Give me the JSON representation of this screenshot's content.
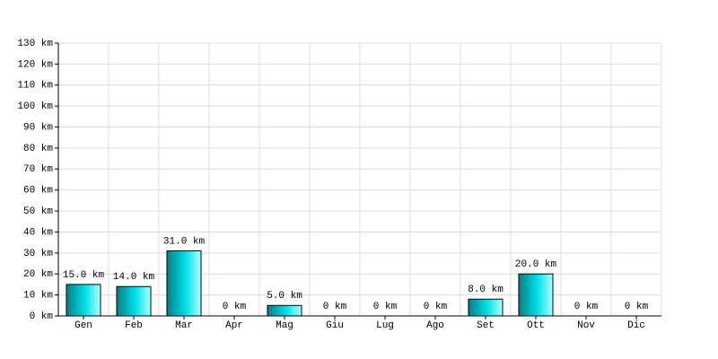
{
  "chart_data": {
    "type": "bar",
    "categories": [
      "Gen",
      "Feb",
      "Mar",
      "Apr",
      "Mag",
      "Giu",
      "Lug",
      "Ago",
      "Set",
      "Ott",
      "Nov",
      "Dic"
    ],
    "values": [
      15,
      14,
      31,
      0,
      5,
      0,
      0,
      0,
      8,
      20,
      0,
      0
    ],
    "value_labels": [
      "15.0 km",
      "14.0 km",
      "31.0 km",
      "0 km",
      "5.0 km",
      "0 km",
      "0 km",
      "0 km",
      "8.0 km",
      "20.0 km",
      "0 km",
      "0 km"
    ],
    "color": "#00c8d0",
    "ylim": [
      0,
      130
    ],
    "yticks": [
      {
        "value": 0,
        "label": "0 km"
      },
      {
        "value": 10,
        "label": "10 km"
      },
      {
        "value": 20,
        "label": "20 km"
      },
      {
        "value": 30,
        "label": "30 km"
      },
      {
        "value": 40,
        "label": "40 km"
      },
      {
        "value": 50,
        "label": "50 km"
      },
      {
        "value": 60,
        "label": "60 km"
      },
      {
        "value": 70,
        "label": "70 km"
      },
      {
        "value": 80,
        "label": "80 km"
      },
      {
        "value": 90,
        "label": "90 km"
      },
      {
        "value": 100,
        "label": "100 km"
      },
      {
        "value": 110,
        "label": "110 km"
      },
      {
        "value": 120,
        "label": "120 km"
      },
      {
        "value": 130,
        "label": "130 km"
      }
    ],
    "grid": true
  }
}
